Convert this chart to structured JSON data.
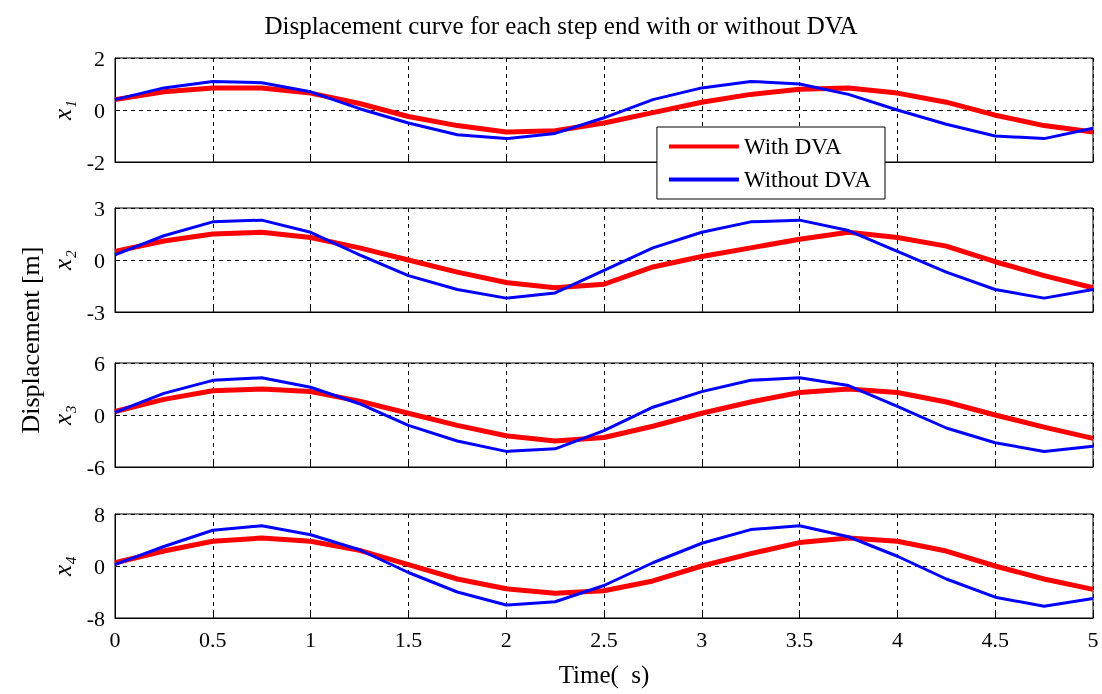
{
  "chart_data": [
    {
      "type": "line",
      "title": "Displacement curve for each step end with or without DVA",
      "ylabel": "x₁",
      "annotations": [
        "Displacement [m]"
      ],
      "x": [
        0,
        0.25,
        0.5,
        0.75,
        1,
        1.25,
        1.5,
        1.75,
        2,
        2.25,
        2.5,
        2.75,
        3,
        3.25,
        3.5,
        3.75,
        4,
        4.25,
        4.5,
        4.75,
        5
      ],
      "series": [
        {
          "name": "With DVA",
          "color": "#ff0000",
          "values": [
            0.4,
            0.7,
            0.85,
            0.85,
            0.65,
            0.25,
            -0.25,
            -0.6,
            -0.85,
            -0.8,
            -0.5,
            -0.1,
            0.3,
            0.6,
            0.8,
            0.85,
            0.65,
            0.3,
            -0.2,
            -0.6,
            -0.85
          ]
        },
        {
          "name": "Without DVA",
          "color": "#0000ff",
          "values": [
            0.4,
            0.85,
            1.1,
            1.05,
            0.7,
            0.05,
            -0.5,
            -0.95,
            -1.1,
            -0.9,
            -0.3,
            0.4,
            0.85,
            1.1,
            1.0,
            0.6,
            0.0,
            -0.55,
            -1.0,
            -1.1,
            -0.7
          ]
        }
      ],
      "xlim": [
        0,
        5
      ],
      "xticks": [
        0,
        0.5,
        1,
        1.5,
        2,
        2.5,
        3,
        3.5,
        4,
        4.5,
        5
      ],
      "ylim": [
        -2,
        2
      ],
      "yticks": [
        -2,
        0,
        2
      ],
      "grid": true,
      "legend": "bottom right",
      "tick_labels": "y"
    },
    {
      "type": "line",
      "ylabel": "x₂",
      "x": [
        0,
        0.25,
        0.5,
        0.75,
        1,
        1.25,
        1.5,
        1.75,
        2,
        2.25,
        2.5,
        2.75,
        3,
        3.25,
        3.5,
        3.75,
        4,
        4.25,
        4.5,
        4.75,
        5
      ],
      "series": [
        {
          "color": "#ff0000",
          "values": [
            0.5,
            1.1,
            1.5,
            1.6,
            1.3,
            0.7,
            0.0,
            -0.7,
            -1.3,
            -1.6,
            -1.4,
            -0.4,
            0.2,
            0.7,
            1.2,
            1.6,
            1.3,
            0.8,
            -0.1,
            -0.9,
            -1.6
          ]
        },
        {
          "color": "#0000ff",
          "values": [
            0.3,
            1.4,
            2.2,
            2.3,
            1.6,
            0.3,
            -0.9,
            -1.7,
            -2.2,
            -1.9,
            -0.6,
            0.7,
            1.6,
            2.2,
            2.3,
            1.7,
            0.5,
            -0.7,
            -1.7,
            -2.2,
            -1.7
          ]
        }
      ],
      "xlim": [
        0,
        5
      ],
      "xticks": [
        0,
        0.5,
        1,
        1.5,
        2,
        2.5,
        3,
        3.5,
        4,
        4.5,
        5
      ],
      "ylim": [
        -3,
        3
      ],
      "yticks": [
        -3,
        0,
        3
      ],
      "grid": true,
      "tick_labels": "y"
    },
    {
      "type": "line",
      "ylabel": "x₃",
      "x": [
        0,
        0.25,
        0.5,
        0.75,
        1,
        1.25,
        1.5,
        1.75,
        2,
        2.25,
        2.5,
        2.75,
        3,
        3.25,
        3.5,
        3.75,
        4,
        4.25,
        4.5,
        4.75,
        5
      ],
      "series": [
        {
          "color": "#ff0000",
          "values": [
            0.4,
            1.8,
            2.8,
            3.0,
            2.7,
            1.6,
            0.2,
            -1.2,
            -2.4,
            -3.0,
            -2.6,
            -1.3,
            0.2,
            1.5,
            2.6,
            3.0,
            2.6,
            1.5,
            0.0,
            -1.4,
            -2.7
          ]
        },
        {
          "color": "#0000ff",
          "values": [
            0.3,
            2.5,
            4.0,
            4.3,
            3.2,
            1.3,
            -1.2,
            -3.0,
            -4.2,
            -3.9,
            -1.8,
            0.9,
            2.7,
            4.0,
            4.3,
            3.4,
            1.0,
            -1.5,
            -3.2,
            -4.2,
            -3.6
          ]
        }
      ],
      "xlim": [
        0,
        5
      ],
      "xticks": [
        0,
        0.5,
        1,
        1.5,
        2,
        2.5,
        3,
        3.5,
        4,
        4.5,
        5
      ],
      "ylim": [
        -6,
        6
      ],
      "yticks": [
        -6,
        0,
        6
      ],
      "grid": true,
      "tick_labels": "y"
    },
    {
      "type": "line",
      "ylabel": "x₄",
      "xlabel": "Time(  s)",
      "x": [
        0,
        0.25,
        0.5,
        0.75,
        1,
        1.25,
        1.5,
        1.75,
        2,
        2.25,
        2.5,
        2.75,
        3,
        3.25,
        3.5,
        3.75,
        4,
        4.25,
        4.5,
        4.75,
        5
      ],
      "series": [
        {
          "color": "#ff0000",
          "values": [
            0.5,
            2.3,
            3.8,
            4.3,
            3.8,
            2.4,
            0.2,
            -2.0,
            -3.5,
            -4.2,
            -3.8,
            -2.3,
            0.0,
            1.9,
            3.6,
            4.3,
            3.8,
            2.3,
            0.0,
            -2.0,
            -3.6
          ]
        },
        {
          "color": "#0000ff",
          "values": [
            0.2,
            3.0,
            5.5,
            6.2,
            4.8,
            2.5,
            -1.0,
            -4.0,
            -6.0,
            -5.5,
            -3.0,
            0.5,
            3.5,
            5.6,
            6.2,
            4.5,
            1.5,
            -2.0,
            -4.8,
            -6.2,
            -5.0
          ]
        }
      ],
      "xlim": [
        0,
        5
      ],
      "xticks": [
        0,
        0.5,
        1,
        1.5,
        2,
        2.5,
        3,
        3.5,
        4,
        4.5,
        5
      ],
      "ylim": [
        -8,
        8
      ],
      "yticks": [
        -8,
        0,
        8
      ],
      "grid": true
    }
  ]
}
